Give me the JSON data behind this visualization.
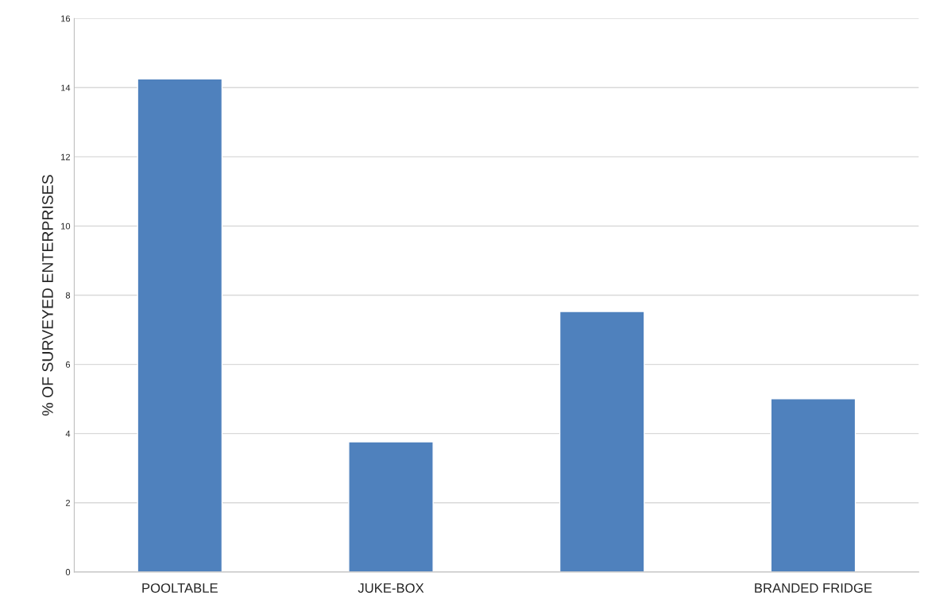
{
  "chart_data": {
    "type": "bar",
    "ylabel": "% OF SURVEYED ENTERPRISES",
    "categories": [
      "POOLTABLE",
      "JUKE-BOX",
      null,
      "BRANDED FRIDGE"
    ],
    "values": [
      14.25,
      3.76,
      7.53,
      5.01
    ],
    "color": "#4f81bd",
    "ylim": [
      0,
      16
    ],
    "yticks": [
      0,
      2,
      4,
      6,
      8,
      10,
      12,
      14,
      16
    ],
    "grid": "y"
  }
}
